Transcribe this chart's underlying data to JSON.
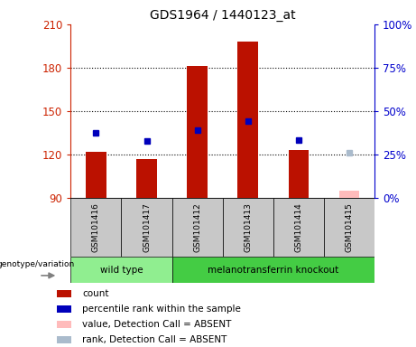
{
  "title": "GDS1964 / 1440123_at",
  "samples": [
    "GSM101416",
    "GSM101417",
    "GSM101412",
    "GSM101413",
    "GSM101414",
    "GSM101415"
  ],
  "count_values": [
    122,
    117,
    181,
    198,
    123,
    95
  ],
  "percentile_values": [
    135,
    129,
    137,
    143,
    130,
    121
  ],
  "absent_flags": [
    false,
    false,
    false,
    false,
    false,
    true
  ],
  "groups": [
    {
      "label": "wild type",
      "indices": [
        0,
        1
      ],
      "color": "#90ee90"
    },
    {
      "label": "melanotransferrin knockout",
      "indices": [
        2,
        3,
        4,
        5
      ],
      "color": "#44cc44"
    }
  ],
  "ymin": 90,
  "ymax": 210,
  "yticks_left": [
    90,
    120,
    150,
    180,
    210
  ],
  "yticks_right": [
    0,
    25,
    50,
    75,
    100
  ],
  "bar_color_present": "#bb1100",
  "bar_color_absent": "#ffbbbb",
  "dot_color_present": "#0000bb",
  "dot_color_absent": "#aabbcc",
  "bar_width": 0.4,
  "plot_bg_color": "#ffffff",
  "label_color_left": "#cc2200",
  "label_color_right": "#0000cc",
  "genotype_label": "genotype/variation",
  "legend_items": [
    {
      "label": "count",
      "color": "#bb1100"
    },
    {
      "label": "percentile rank within the sample",
      "color": "#0000bb"
    },
    {
      "label": "value, Detection Call = ABSENT",
      "color": "#ffbbbb"
    },
    {
      "label": "rank, Detection Call = ABSENT",
      "color": "#aabbcc"
    }
  ],
  "label_bg": "#c8c8c8",
  "grid_ticks": [
    120,
    150,
    180
  ]
}
